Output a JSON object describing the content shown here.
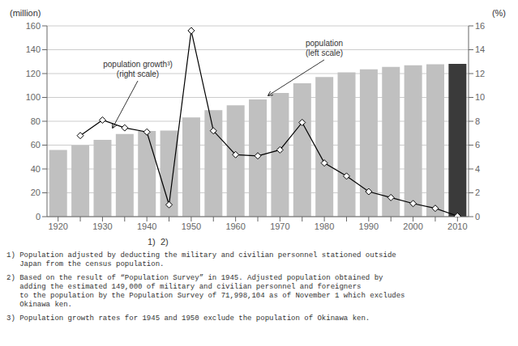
{
  "chart_data": {
    "type": "bar",
    "categories": [
      "1920",
      null,
      "1930",
      null,
      "1940",
      null,
      "1950",
      null,
      "1960",
      null,
      "1970",
      null,
      "1980",
      null,
      "1990",
      null,
      "2000",
      null,
      "2010"
    ],
    "series": [
      {
        "name": "population",
        "type": "bar",
        "colors": [
          "#c0c0c0",
          "#c0c0c0",
          "#c0c0c0",
          "#c0c0c0",
          "#c0c0c0",
          "#c0c0c0",
          "#c0c0c0",
          "#c0c0c0",
          "#c0c0c0",
          "#c0c0c0",
          "#c0c0c0",
          "#c0c0c0",
          "#c0c0c0",
          "#c0c0c0",
          "#c0c0c0",
          "#c0c0c0",
          "#c0c0c0",
          "#c0c0c0",
          "#3a3a3a"
        ],
        "values": [
          55.96,
          59.74,
          64.45,
          69.25,
          71.93,
          72.15,
          83.2,
          89.28,
          93.42,
          98.27,
          103.72,
          111.94,
          117.06,
          121.05,
          123.61,
          125.57,
          126.93,
          127.77,
          128.06
        ]
      },
      {
        "name": "population growth",
        "type": "line",
        "axis": "y2",
        "color": "#000000",
        "marker": "diamond",
        "values": [
          null,
          6.8,
          8.1,
          7.45,
          7.1,
          1.0,
          15.6,
          7.2,
          5.2,
          5.1,
          5.6,
          7.9,
          4.5,
          3.4,
          2.1,
          1.6,
          1.1,
          0.7,
          0.05
        ]
      }
    ],
    "ylim": [
      0,
      160
    ],
    "yticks": [
      0,
      20,
      40,
      60,
      80,
      100,
      120,
      140,
      160
    ],
    "y2lim": [
      0,
      16
    ],
    "y2ticks": [
      0,
      2,
      4,
      6,
      8,
      10,
      12,
      14,
      16
    ],
    "ylabel": "(million)",
    "y2label": "(%)",
    "xlabel": "1)  2)",
    "grid": true,
    "annotations": [
      "population growth³)\n(right scale)",
      "population\n(left scale)"
    ],
    "footnotes": [
      "1) Population adjusted by deducting the military and civilian personnel stationed outside\n   Japan from the census population.",
      "2) Based on the result of “Population Survey” in 1945. Adjusted population obtained by\n   adding the estimated 149,000 of military and civilian personnel and foreigners\n   to the population by the Population Survey of 71,998,104 as of November 1 which excludes\n   Okinawa ken.",
      "3) Population growth rates for 1945 and 1950 exclude the population of Okinawa ken."
    ]
  }
}
